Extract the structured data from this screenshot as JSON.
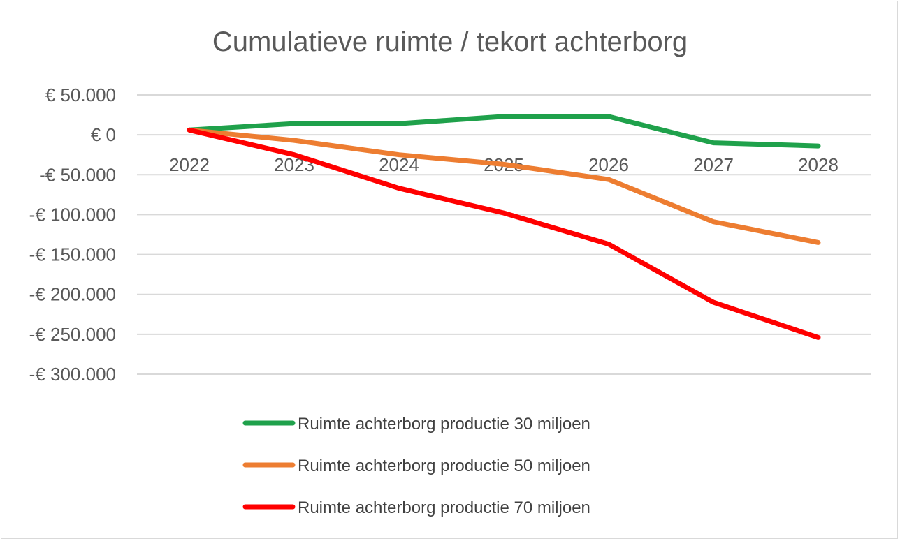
{
  "chart_data": {
    "type": "line",
    "title": "Cumulatieve ruimte / tekort achterborg",
    "xlabel": "",
    "ylabel": "",
    "categories": [
      "2022",
      "2023",
      "2024",
      "2025",
      "2026",
      "2027",
      "2028"
    ],
    "ylim": [
      -300000,
      50000
    ],
    "yticks": [
      50000,
      0,
      -50000,
      -100000,
      -150000,
      -200000,
      -250000,
      -300000
    ],
    "ytick_labels": [
      "€ 50.000",
      "€ 0",
      "-€ 50.000",
      "-€ 100.000",
      "-€ 150.000",
      "-€ 200.000",
      "-€ 250.000",
      "-€ 300.000"
    ],
    "grid": true,
    "legend_position": "bottom",
    "series": [
      {
        "name": "Ruimte achterborg productie 30 miljoen",
        "color": "#1fa14b",
        "values": [
          6000,
          14000,
          14000,
          23000,
          23000,
          -10000,
          -14000
        ]
      },
      {
        "name": "Ruimte achterborg productie 50 miljoen",
        "color": "#ed7d31",
        "values": [
          6000,
          -7000,
          -25000,
          -37000,
          -56000,
          -109000,
          -135000
        ]
      },
      {
        "name": "Ruimte achterborg productie 70 miljoen",
        "color": "#ff0000",
        "values": [
          6000,
          -25000,
          -67000,
          -98000,
          -137000,
          -210000,
          -254000
        ]
      }
    ]
  }
}
